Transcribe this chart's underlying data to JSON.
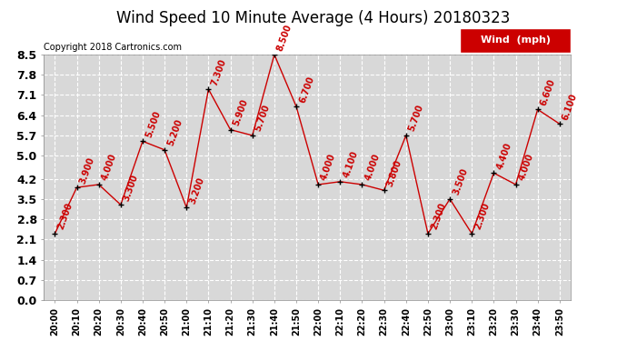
{
  "title": "Wind Speed 10 Minute Average (4 Hours) 20180323",
  "copyright": "Copyright 2018 Cartronics.com",
  "legend_label": "Wind  (mph)",
  "x_labels": [
    "20:00",
    "20:10",
    "20:20",
    "20:30",
    "20:40",
    "20:50",
    "21:00",
    "21:10",
    "21:20",
    "21:30",
    "21:40",
    "21:50",
    "22:00",
    "22:10",
    "22:20",
    "22:30",
    "22:40",
    "22:50",
    "23:00",
    "23:10",
    "23:20",
    "23:30",
    "23:40",
    "23:50"
  ],
  "y_values": [
    2.3,
    3.9,
    4.0,
    3.3,
    5.5,
    5.2,
    3.2,
    7.3,
    5.9,
    5.7,
    8.5,
    6.7,
    4.0,
    4.1,
    4.0,
    3.8,
    5.7,
    2.3,
    3.5,
    2.3,
    4.4,
    4.0,
    6.6,
    6.1
  ],
  "ann_labels": [
    "2.300",
    "3.900",
    "4.000",
    "3.300",
    "5.500",
    "5.200",
    "3.200",
    "7.300",
    "5.900",
    "5.700",
    "8.500",
    "6.700",
    "4.000",
    "4.100",
    "4.000",
    "3.800",
    "5.700",
    "2.300",
    "3.500",
    "2.300",
    "4.400",
    "4.000",
    "6.600",
    "6.100"
  ],
  "line_color": "#cc0000",
  "marker_color": "#000000",
  "annotation_color": "#cc0000",
  "bg_color": "#ffffff",
  "plot_bg_color": "#d8d8d8",
  "grid_color": "#ffffff",
  "ylim": [
    0.0,
    8.5
  ],
  "yticks": [
    0.0,
    0.7,
    1.4,
    2.1,
    2.8,
    3.5,
    4.2,
    5.0,
    5.7,
    6.4,
    7.1,
    7.8,
    8.5
  ],
  "title_fontsize": 12,
  "annotation_fontsize": 7,
  "copyright_fontsize": 7,
  "legend_fontsize": 8,
  "ytick_fontsize": 9,
  "xtick_fontsize": 7
}
